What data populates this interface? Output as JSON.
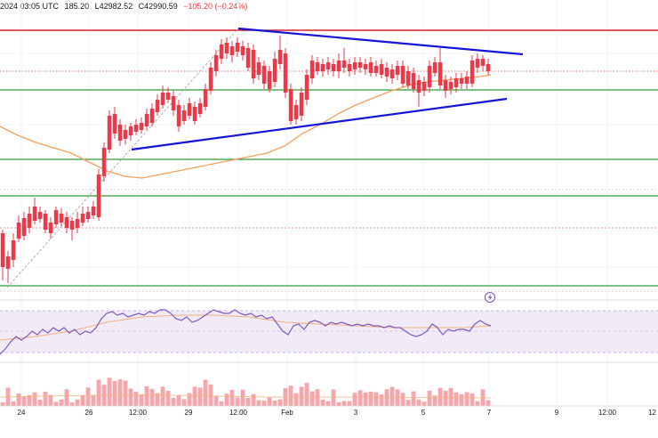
{
  "header": {
    "date_label": "2024 03:05 UTC",
    "high_label": "185.20",
    "low_label": "L42982.52",
    "close_label": "C42990.59",
    "change_label": "−105.20 (−0.24%)"
  },
  "x_axis": {
    "ticks": [
      "24",
      "26",
      "12:00",
      "29",
      "12:00",
      "Feb",
      "3",
      "5",
      "7",
      "9",
      "12:00",
      "12"
    ]
  },
  "colors": {
    "up": "#5b9bd5",
    "down": "#f23645",
    "trendline": "#1515d6",
    "support": "#2e9e3a",
    "resistance": "#d3212d",
    "ma": "#f5a05a",
    "rsi": "#7e57c2",
    "rsi_band": "#ede7f6",
    "vol_up": "#8fd0b3",
    "vol_down": "#f6a6aa"
  },
  "icons": {
    "alert": "lightning-bolt-icon"
  }
}
